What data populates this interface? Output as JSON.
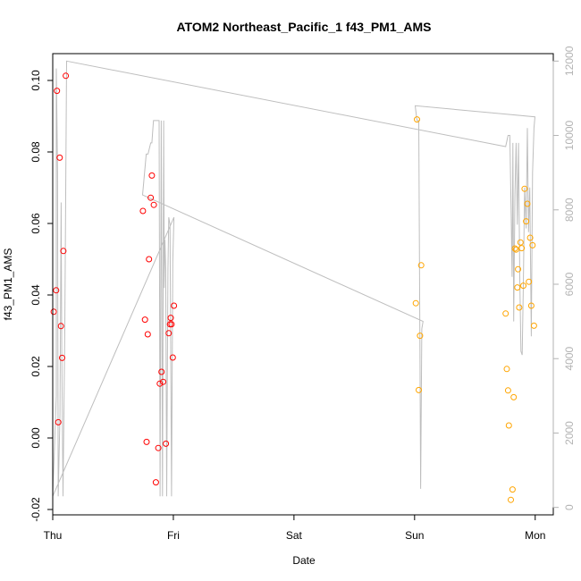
{
  "chart_data": {
    "type": "scatter",
    "title": "ATOM2 Northeast_Pacific_1 f43_PM1_AMS",
    "xlabel": "Date",
    "ylabel": "f43_PM1_AMS",
    "xlim": [
      0,
      4.15
    ],
    "ylim": [
      -0.0215,
      0.1075
    ],
    "y2lim": [
      -200,
      12200
    ],
    "x_tick_values": [
      0,
      1,
      2,
      3,
      4
    ],
    "x_tick_labels": [
      "Thu",
      "Fri",
      "Sat",
      "Sun",
      "Mon"
    ],
    "y_tick_values": [
      -0.02,
      0.0,
      0.02,
      0.04,
      0.06,
      0.08,
      0.1
    ],
    "y_tick_labels": [
      "-0.02",
      "0.00",
      "0.02",
      "0.04",
      "0.06",
      "0.08",
      "0.10"
    ],
    "y2_tick_values": [
      0,
      2000,
      4000,
      6000,
      8000,
      10000,
      12000
    ],
    "y2_tick_labels": [
      "0",
      "2000",
      "4000",
      "6000",
      "8000",
      "10000",
      "12000"
    ],
    "grid": false,
    "colors": {
      "series_red": "#ff0000",
      "series_orange": "#ffa500",
      "line": "#bebebe",
      "axis": "#000000",
      "right_axis": "#b3b3b3"
    },
    "series": [
      {
        "color": "#ff0000",
        "marker": "open-circle",
        "x": [
          0.008,
          0.028,
          0.035,
          0.046,
          0.058,
          0.068,
          0.078,
          0.088,
          0.108,
          0.748,
          0.765,
          0.778,
          0.788,
          0.798,
          0.812,
          0.822,
          0.838,
          0.855,
          0.875,
          0.888,
          0.902,
          0.915,
          0.938,
          0.962,
          0.972,
          0.978,
          0.985,
          0.995,
          1.005
        ],
        "y": [
          0.0353,
          0.0413,
          0.0971,
          0.0044,
          0.0784,
          0.0313,
          0.0224,
          0.0523,
          0.1013,
          0.0635,
          0.0331,
          -0.0011,
          0.029,
          0.05,
          0.0672,
          0.0734,
          0.0652,
          -0.0124,
          -0.0028,
          0.0152,
          0.0185,
          0.0157,
          -0.0016,
          0.0293,
          0.0318,
          0.0336,
          0.0318,
          0.0225,
          0.037
        ]
      },
      {
        "color": "#ffa500",
        "marker": "open-circle",
        "x": [
          3.01,
          3.02,
          3.035,
          3.045,
          3.055,
          3.755,
          3.765,
          3.775,
          3.782,
          3.798,
          3.812,
          3.822,
          3.832,
          3.842,
          3.852,
          3.858,
          3.868,
          3.878,
          3.888,
          3.902,
          3.912,
          3.925,
          3.935,
          3.948,
          3.958,
          3.968,
          3.978,
          3.99
        ],
        "y": [
          0.0377,
          0.0891,
          0.0134,
          0.0286,
          0.0483,
          0.0348,
          0.0193,
          0.0133,
          0.0035,
          -0.0173,
          -0.0144,
          0.0114,
          0.053,
          0.0527,
          0.0421,
          0.0472,
          0.0365,
          0.0547,
          0.0531,
          0.0426,
          0.0697,
          0.0606,
          0.0655,
          0.0437,
          0.056,
          0.037,
          0.0539,
          0.0314
        ]
      }
    ],
    "right_axis_series": {
      "color": "#bebebe",
      "type": "line",
      "x": [
        0.0,
        0.03,
        0.03,
        0.04,
        0.045,
        0.06,
        0.07,
        0.075,
        0.085,
        0.1,
        0.11,
        0.115,
        3.755,
        3.775,
        3.79,
        3.8,
        3.808,
        3.815,
        3.822,
        3.832,
        3.842,
        3.852,
        3.862,
        3.872,
        3.882,
        3.892,
        3.902,
        3.912,
        3.925,
        3.935,
        3.945,
        3.955,
        3.968,
        3.978,
        3.99,
        3.998,
        3.005,
        3.02,
        3.035,
        3.05,
        3.06,
        3.07,
        0.745,
        0.775,
        0.79,
        0.812,
        0.822,
        0.835,
        0.845,
        0.858,
        0.872,
        0.882,
        0.89,
        0.9,
        0.91,
        0.92,
        0.925,
        0.93,
        0.937,
        0.945,
        0.955,
        0.962,
        0.972,
        0.985,
        0.995,
        1.005,
        0.0
      ],
      "y": [
        300,
        3000,
        11800,
        9000,
        300,
        2500,
        8200,
        4200,
        300,
        4800,
        9500,
        12000,
        9700,
        10000,
        10000,
        8000,
        6200,
        9800,
        5000,
        8400,
        9800,
        7600,
        9800,
        6200,
        4200,
        4100,
        6000,
        8600,
        7500,
        10200,
        7400,
        8600,
        4600,
        9000,
        10200,
        10500,
        10800,
        10400,
        10400,
        500,
        4800,
        5000,
        8400,
        9500,
        9500,
        9800,
        9800,
        10400,
        10400,
        10400,
        10400,
        10400,
        300,
        10400,
        300,
        10400,
        5900,
        7200,
        6400,
        300,
        6400,
        7800,
        7600,
        300,
        6600,
        7800,
        300
      ]
    }
  }
}
